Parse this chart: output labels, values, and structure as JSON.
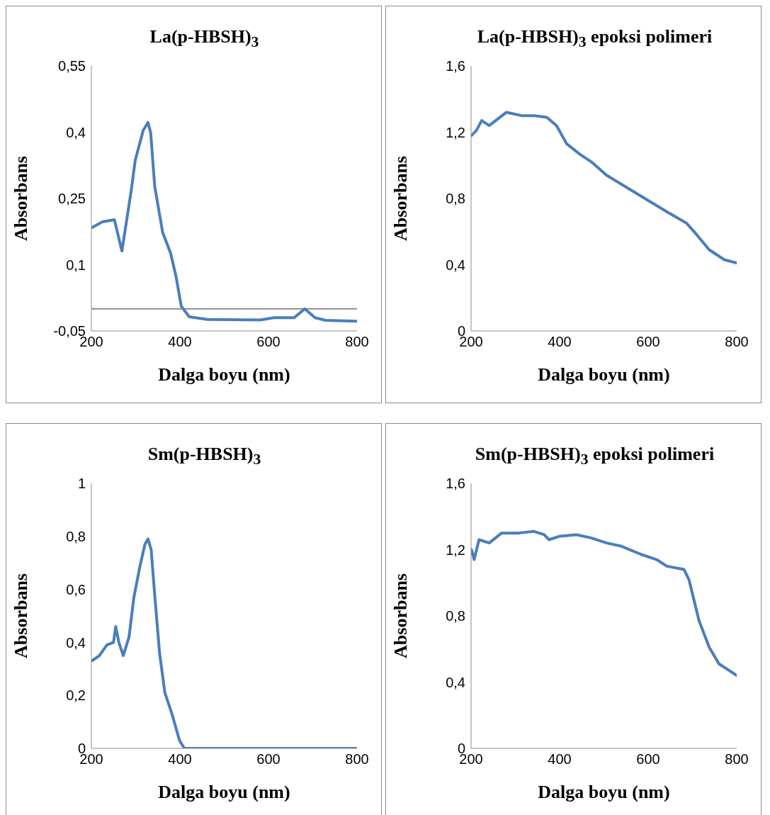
{
  "chart_data": [
    {
      "type": "line",
      "title": "La(p-HBSH)$_{3}$",
      "xlabel": "Dalga boyu (nm)",
      "ylabel": "Absorbans",
      "marker": "none",
      "line_style": "solid",
      "grid": false,
      "legend": false,
      "xlim": [
        200,
        800
      ],
      "xticks": [
        200,
        400,
        600,
        800
      ],
      "ylim": [
        -0.05,
        0.55
      ],
      "yticks": [
        {
          "value": -0.05,
          "label": "-0,05"
        },
        {
          "value": 0.1,
          "label": "0,1"
        },
        {
          "value": 0.25,
          "label": "0,25"
        },
        {
          "value": 0.4,
          "label": "0,4"
        },
        {
          "value": 0.55,
          "label": "0,55"
        }
      ],
      "ref_lines": [
        {
          "axis": "y",
          "value": 0,
          "color": "#8c8c8c"
        }
      ],
      "series": [
        {
          "color": "#4a7ebb",
          "x": [
            201,
            225,
            252,
            269,
            290,
            299,
            317,
            328,
            334,
            343,
            361,
            379,
            391,
            403,
            421,
            462,
            581,
            613,
            658,
            682,
            705,
            729,
            800
          ],
          "values": [
            0.184,
            0.197,
            0.202,
            0.131,
            0.268,
            0.336,
            0.404,
            0.422,
            0.398,
            0.278,
            0.173,
            0.126,
            0.074,
            0.006,
            -0.018,
            -0.024,
            -0.025,
            -0.02,
            -0.02,
            0.0,
            -0.02,
            -0.026,
            -0.028
          ]
        }
      ]
    },
    {
      "type": "line",
      "title": "La(p-HBSH)$_{3}$ epoksi polimeri",
      "xlabel": "Dalga boyu (nm)",
      "ylabel": "Absorbans",
      "marker": "none",
      "line_style": "solid",
      "grid": false,
      "legend": false,
      "xlim": [
        200,
        800
      ],
      "xticks": [
        200,
        400,
        600,
        800
      ],
      "ylim": [
        0,
        1.6
      ],
      "yticks": [
        {
          "value": 0,
          "label": "0"
        },
        {
          "value": 0.4,
          "label": "0,4"
        },
        {
          "value": 0.8,
          "label": "0,8"
        },
        {
          "value": 1.2,
          "label": "1,2"
        },
        {
          "value": 1.6,
          "label": "1,6"
        }
      ],
      "series": [
        {
          "color": "#4a7ebb",
          "x": [
            201,
            212,
            224,
            241,
            280,
            314,
            342,
            371,
            393,
            416,
            444,
            472,
            506,
            574,
            642,
            687,
            710,
            738,
            772,
            800
          ],
          "values": [
            1.18,
            1.21,
            1.27,
            1.24,
            1.32,
            1.3,
            1.3,
            1.29,
            1.24,
            1.13,
            1.07,
            1.02,
            0.94,
            0.83,
            0.72,
            0.65,
            0.58,
            0.49,
            0.43,
            0.41
          ]
        }
      ]
    },
    {
      "type": "line",
      "title": "Sm(p-HBSH)$_{3}$",
      "xlabel": "Dalga boyu (nm)",
      "ylabel": "Absorbans",
      "marker": "none",
      "line_style": "solid",
      "grid": false,
      "legend": false,
      "xlim": [
        200,
        800
      ],
      "xticks": [
        200,
        400,
        600,
        800
      ],
      "ylim": [
        0,
        1
      ],
      "yticks": [
        {
          "value": 0,
          "label": "0"
        },
        {
          "value": 0.2,
          "label": "0,2"
        },
        {
          "value": 0.4,
          "label": "0,4"
        },
        {
          "value": 0.6,
          "label": "0,6"
        },
        {
          "value": 0.8,
          "label": "0,8"
        },
        {
          "value": 1,
          "label": "1"
        }
      ],
      "series": [
        {
          "color": "#4a7ebb",
          "x": [
            201,
            218,
            235,
            250,
            255,
            262,
            272,
            285,
            296,
            310,
            321,
            328,
            335,
            343,
            354,
            366,
            382,
            399,
            410,
            800
          ],
          "values": [
            0.33,
            0.35,
            0.39,
            0.4,
            0.46,
            0.4,
            0.35,
            0.42,
            0.57,
            0.69,
            0.77,
            0.79,
            0.75,
            0.58,
            0.36,
            0.21,
            0.13,
            0.03,
            0,
            0
          ]
        }
      ]
    },
    {
      "type": "line",
      "title": "Sm(p-HBSH)$_{3}$ epoksi polimeri",
      "xlabel": "Dalga boyu (nm)",
      "ylabel": "Absorbans",
      "marker": "none",
      "line_style": "solid",
      "grid": false,
      "legend": false,
      "xlim": [
        200,
        800
      ],
      "xticks": [
        200,
        400,
        600,
        800
      ],
      "ylim": [
        0,
        1.6
      ],
      "yticks": [
        {
          "value": 0,
          "label": "0"
        },
        {
          "value": 0.4,
          "label": "0,4"
        },
        {
          "value": 0.8,
          "label": "0,8"
        },
        {
          "value": 1.2,
          "label": "1,2"
        },
        {
          "value": 1.6,
          "label": "1,6"
        }
      ],
      "series": [
        {
          "color": "#4a7ebb",
          "x": [
            201,
            207,
            218,
            241,
            269,
            308,
            342,
            365,
            376,
            399,
            438,
            472,
            506,
            540,
            585,
            619,
            642,
            681,
            692,
            715,
            738,
            760,
            800
          ],
          "values": [
            1.2,
            1.14,
            1.26,
            1.24,
            1.3,
            1.3,
            1.31,
            1.29,
            1.26,
            1.28,
            1.29,
            1.27,
            1.24,
            1.22,
            1.17,
            1.14,
            1.1,
            1.08,
            1.02,
            0.77,
            0.61,
            0.51,
            0.44
          ]
        }
      ]
    }
  ]
}
